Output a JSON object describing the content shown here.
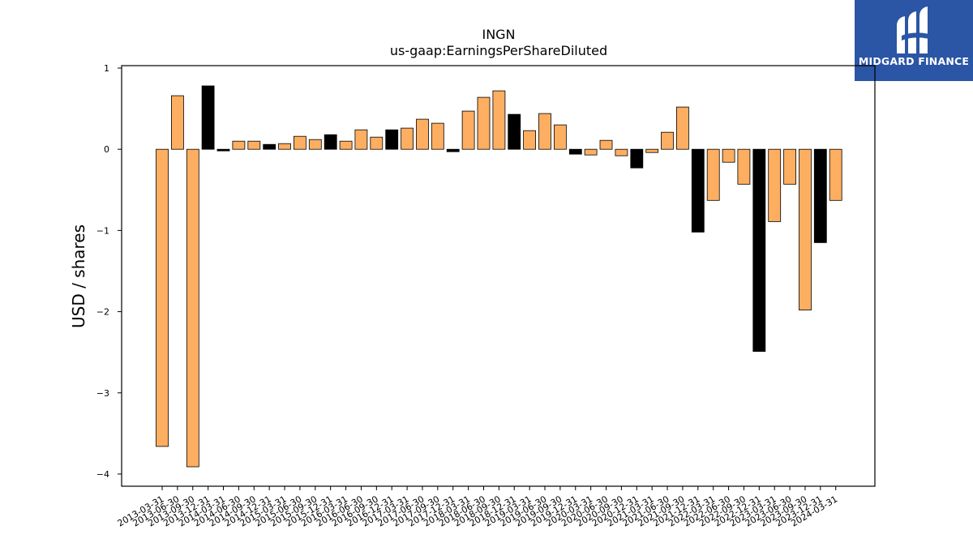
{
  "logo": {
    "name": "MIDGARD FINANCE",
    "background": "#2b55a5"
  },
  "chart_data": {
    "type": "bar",
    "title": "INGN",
    "subtitle": "us-gaap:EarningsPerShareDiluted",
    "xlabel": "",
    "ylabel": "USD / shares",
    "ylim": [
      -4.15,
      1.03
    ],
    "yticks": [
      1,
      0,
      -1,
      -2,
      -3,
      -4
    ],
    "ytick_labels": [
      "1",
      "0",
      "−1",
      "−2",
      "−3",
      "−4"
    ],
    "grid": false,
    "colors": {
      "quarter": "#fdae61",
      "annual": "#000000",
      "edge": "#000000"
    },
    "categories": [
      "2013-03-31",
      "2013-06-30",
      "2013-09-30",
      "2013-12-31",
      "2014-03-31",
      "2014-06-30",
      "2014-09-30",
      "2014-12-31",
      "2015-03-31",
      "2015-06-30",
      "2015-09-30",
      "2015-12-31",
      "2016-03-31",
      "2016-06-30",
      "2016-09-30",
      "2016-12-31",
      "2017-03-31",
      "2017-06-30",
      "2017-09-30",
      "2017-12-31",
      "2018-03-31",
      "2018-06-30",
      "2018-09-30",
      "2018-12-31",
      "2019-03-31",
      "2019-06-30",
      "2019-09-30",
      "2019-12-31",
      "2020-03-31",
      "2020-06-30",
      "2020-09-30",
      "2020-12-31",
      "2021-03-31",
      "2021-06-30",
      "2021-09-30",
      "2021-12-31",
      "2022-03-31",
      "2022-06-30",
      "2022-09-30",
      "2022-12-31",
      "2023-03-31",
      "2023-06-30",
      "2023-09-30",
      "2023-12-31",
      "2024-03-31"
    ],
    "values": [
      -3.66,
      0.66,
      -3.91,
      0.78,
      -0.02,
      0.1,
      0.1,
      0.06,
      0.07,
      0.16,
      0.12,
      0.18,
      0.1,
      0.24,
      0.15,
      0.24,
      0.26,
      0.37,
      0.32,
      -0.03,
      0.47,
      0.64,
      0.72,
      0.43,
      0.23,
      0.44,
      0.3,
      -0.06,
      -0.07,
      0.11,
      -0.08,
      -0.23,
      -0.04,
      0.21,
      0.52,
      -1.02,
      -0.63,
      -0.16,
      -0.43,
      -2.49,
      -0.89,
      -0.43,
      -1.98,
      -1.15,
      -0.63
    ],
    "annual": [
      false,
      false,
      false,
      true,
      true,
      false,
      false,
      true,
      false,
      false,
      false,
      true,
      false,
      false,
      false,
      true,
      false,
      false,
      false,
      true,
      false,
      false,
      false,
      true,
      false,
      false,
      false,
      true,
      false,
      false,
      false,
      true,
      false,
      false,
      false,
      true,
      false,
      false,
      false,
      true,
      false,
      false,
      false,
      true,
      false
    ]
  }
}
